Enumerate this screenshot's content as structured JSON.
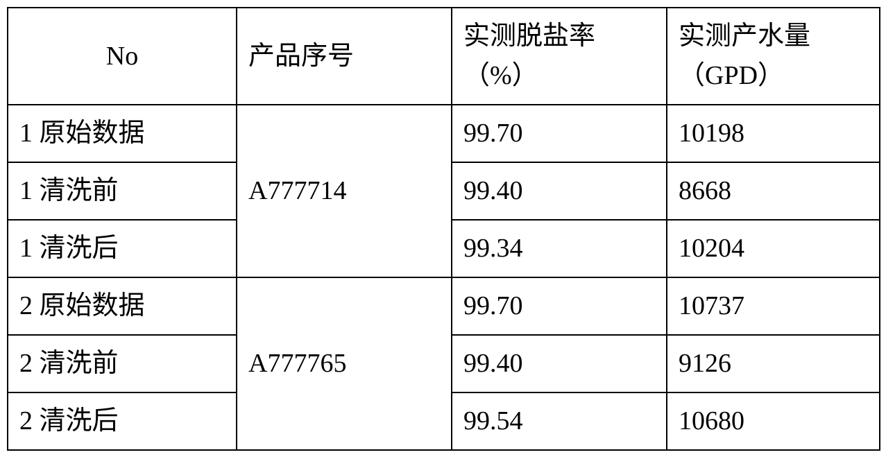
{
  "table": {
    "columns": [
      {
        "key": "no",
        "label": "No"
      },
      {
        "key": "prod",
        "label": "产品序号"
      },
      {
        "key": "rate",
        "label": "实测脱盐率（%）"
      },
      {
        "key": "flow",
        "label": "实测产水量（GPD）"
      }
    ],
    "groups": [
      {
        "product_serial": "A777714",
        "rows": [
          {
            "no": "1 原始数据",
            "rate": "99.70",
            "flow": "10198"
          },
          {
            "no": "1 清洗前",
            "rate": "99.40",
            "flow": "8668"
          },
          {
            "no": "1 清洗后",
            "rate": "99.34",
            "flow": "10204"
          }
        ]
      },
      {
        "product_serial": "A777765",
        "rows": [
          {
            "no": "2 原始数据",
            "rate": "99.70",
            "flow": "10737"
          },
          {
            "no": "2 清洗前",
            "rate": "99.40",
            "flow": "9126"
          },
          {
            "no": "2 清洗后",
            "rate": "99.54",
            "flow": "10680"
          }
        ]
      }
    ],
    "border_color": "#000000",
    "background_color": "#ffffff",
    "font_size_pt": 28
  }
}
